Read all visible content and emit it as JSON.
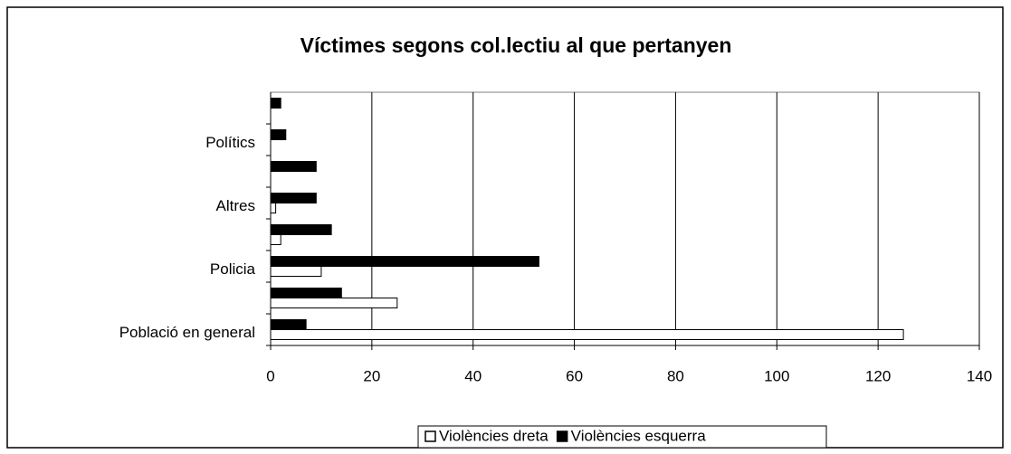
{
  "chart_data": {
    "type": "bar",
    "orientation": "horizontal",
    "title": "Víctimes segons col.lectiu al que pertanyen",
    "categories": [
      "Població en general",
      null,
      "Policia",
      null,
      "Altres",
      null,
      "Polítics",
      null
    ],
    "series": [
      {
        "name": "Violències dreta",
        "color": "#ffffff",
        "values": [
          125,
          25,
          10,
          2,
          1,
          0,
          0,
          0
        ]
      },
      {
        "name": "Violències esquerra",
        "color": "#000000",
        "values": [
          7,
          14,
          53,
          12,
          9,
          9,
          3,
          2
        ]
      }
    ],
    "xlim": [
      0,
      140
    ],
    "xticks": [
      0,
      20,
      40,
      60,
      80,
      100,
      120,
      140
    ],
    "grid": true,
    "legend": "bottom"
  }
}
